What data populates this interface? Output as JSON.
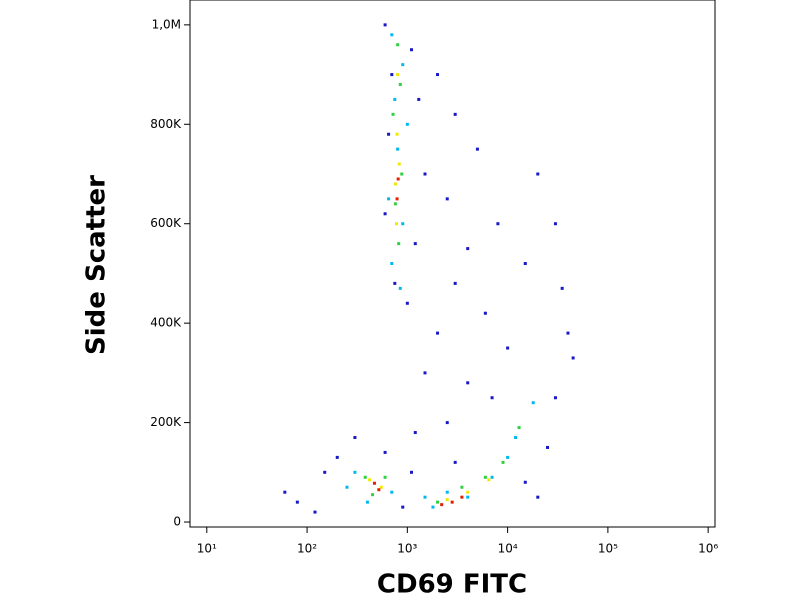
{
  "chart_data": {
    "type": "scatter",
    "xlabel": "CD69 FITC",
    "ylabel": "Side Scatter",
    "xscale": "log",
    "xlim": [
      6.8,
      1170000
    ],
    "ylim": [
      -10000,
      1050000
    ],
    "xticks": [
      {
        "value": 10,
        "label": "10¹"
      },
      {
        "value": 100,
        "label": "10²"
      },
      {
        "value": 1000,
        "label": "10³"
      },
      {
        "value": 10000,
        "label": "10⁴"
      },
      {
        "value": 100000,
        "label": "10⁵"
      },
      {
        "value": 1000000,
        "label": "10⁶"
      }
    ],
    "yticks": [
      0,
      {
        "value": 200000,
        "label": "200K"
      },
      {
        "value": 400000,
        "label": "400K"
      },
      {
        "value": 600000,
        "label": "600K"
      },
      {
        "value": 800000,
        "label": "800K"
      },
      {
        "value": 1000000,
        "label": "1,0M"
      }
    ],
    "series": [
      {
        "color": "#1818c8",
        "x": [
          600,
          1100,
          700,
          1300,
          650,
          1500,
          600,
          1200,
          750,
          1000,
          2000,
          3000,
          5000,
          2500,
          8000,
          4000,
          15000,
          3000,
          6000,
          2000,
          10000,
          1500,
          4000,
          7000,
          2500,
          1200,
          20000,
          30000,
          35000,
          40000,
          60,
          80,
          150,
          200,
          300,
          120,
          900,
          1100,
          600,
          3000,
          30000,
          25000,
          15000,
          20000,
          45000
        ],
        "y": [
          1000000,
          950000,
          900000,
          850000,
          780000,
          700000,
          620000,
          560000,
          480000,
          440000,
          900000,
          820000,
          750000,
          650000,
          600000,
          550000,
          520000,
          480000,
          420000,
          380000,
          350000,
          300000,
          280000,
          250000,
          200000,
          180000,
          700000,
          600000,
          470000,
          380000,
          60000,
          40000,
          100000,
          130000,
          170000,
          20000,
          30000,
          100000,
          140000,
          120000,
          250000,
          150000,
          80000,
          50000,
          330000
        ]
      },
      {
        "color": "#00b8f0",
        "x": [
          700,
          900,
          750,
          1000,
          800,
          650,
          900,
          700,
          850,
          300,
          700,
          400,
          250,
          1800,
          4000,
          7000,
          12000,
          18000,
          10000,
          2500,
          1500
        ],
        "y": [
          980000,
          920000,
          850000,
          800000,
          750000,
          650000,
          600000,
          520000,
          470000,
          100000,
          60000,
          40000,
          70000,
          30000,
          50000,
          90000,
          170000,
          240000,
          130000,
          60000,
          50000
        ]
      },
      {
        "color": "#30d040",
        "x": [
          800,
          850,
          720,
          880,
          760,
          820,
          380,
          600,
          450,
          2000,
          3500,
          6000,
          9000,
          13000
        ],
        "y": [
          960000,
          880000,
          820000,
          700000,
          640000,
          560000,
          90000,
          90000,
          55000,
          40000,
          70000,
          90000,
          120000,
          190000
        ]
      },
      {
        "color": "#f0e800",
        "x": [
          800,
          790,
          830,
          760,
          780,
          420,
          550,
          2500,
          4000,
          6500
        ],
        "y": [
          900000,
          780000,
          720000,
          680000,
          600000,
          85000,
          70000,
          45000,
          60000,
          85000
        ]
      },
      {
        "color": "#e02000",
        "x": [
          810,
          790,
          470,
          520,
          2800,
          3500,
          2200
        ],
        "y": [
          690000,
          650000,
          78000,
          65000,
          40000,
          50000,
          35000
        ]
      }
    ]
  }
}
